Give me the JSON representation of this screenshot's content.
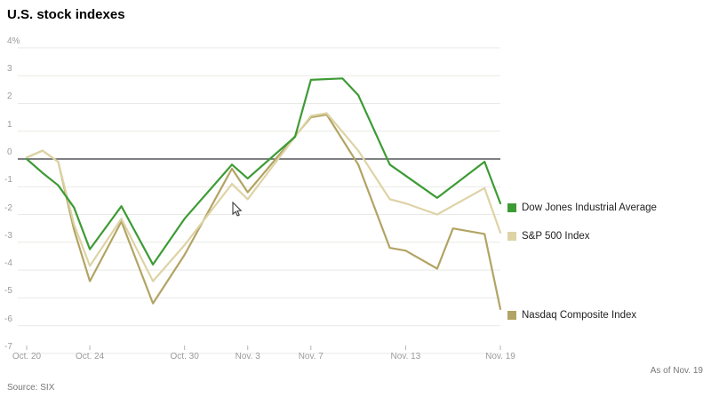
{
  "header": {
    "title": "U.S. stock indexes"
  },
  "footer": {
    "source": "Source: SIX",
    "as_of": "As of Nov. 19"
  },
  "chart_data": {
    "type": "line",
    "title": "U.S. stock indexes",
    "unit": "%",
    "grid": true,
    "y_axis": {
      "min": -7,
      "max": 4,
      "tick_step": 1,
      "labels": [
        "4%",
        "3",
        "2",
        "1",
        "0",
        "-1",
        "-2",
        "-3",
        "-4",
        "-5",
        "-6",
        "-7"
      ],
      "zero_line": true
    },
    "x_axis": {
      "start_date": "Oct. 20",
      "end_date": "Nov. 19",
      "span_days": 30,
      "ticks": [
        {
          "label": "Oct. 20",
          "day": 0
        },
        {
          "label": "Oct. 24",
          "day": 4
        },
        {
          "label": "Oct. 30",
          "day": 10
        },
        {
          "label": "Nov. 3",
          "day": 14
        },
        {
          "label": "Nov. 7",
          "day": 18
        },
        {
          "label": "Nov. 13",
          "day": 24
        },
        {
          "label": "Nov. 19",
          "day": 30
        }
      ]
    },
    "series": [
      {
        "name": "Dow Jones Industrial Average",
        "color": "#3d9b35",
        "points": [
          [
            "Oct. 20",
            0,
            0.0
          ],
          [
            "Oct. 21",
            1,
            -0.5
          ],
          [
            "Oct. 22",
            2,
            -0.95
          ],
          [
            "Oct. 23",
            3,
            -1.75
          ],
          [
            "Oct. 24",
            4,
            -3.25
          ],
          [
            "Oct. 26",
            6,
            -1.7
          ],
          [
            "Oct. 28",
            8,
            -3.8
          ],
          [
            "Oct. 30",
            10,
            -2.15
          ],
          [
            "Nov. 2",
            13,
            -0.2
          ],
          [
            "Nov. 3",
            14,
            -0.7
          ],
          [
            "Nov. 6",
            17,
            0.8
          ],
          [
            "Nov. 7",
            18,
            2.85
          ],
          [
            "Nov. 9",
            20,
            2.9
          ],
          [
            "Nov. 10",
            21,
            2.3
          ],
          [
            "Nov. 12",
            23,
            -0.2
          ],
          [
            "Nov. 13",
            24,
            -0.6
          ],
          [
            "Nov. 15",
            26,
            -1.4
          ],
          [
            "Nov. 18",
            29,
            -0.1
          ],
          [
            "Nov. 19",
            30,
            -1.6
          ]
        ]
      },
      {
        "name": "S&P 500 Index",
        "color": "#ded3a5",
        "points": [
          [
            "Oct. 20",
            0,
            0.05
          ],
          [
            "Oct. 21",
            1,
            0.3
          ],
          [
            "Oct. 22",
            2,
            -0.1
          ],
          [
            "Oct. 23",
            3,
            -2.35
          ],
          [
            "Oct. 24",
            4,
            -3.85
          ],
          [
            "Oct. 26",
            6,
            -2.15
          ],
          [
            "Oct. 28",
            8,
            -4.4
          ],
          [
            "Oct. 30",
            10,
            -3.1
          ],
          [
            "Nov. 2",
            13,
            -0.9
          ],
          [
            "Nov. 3",
            14,
            -1.45
          ],
          [
            "Nov. 7",
            18,
            1.55
          ],
          [
            "Nov. 8",
            19,
            1.65
          ],
          [
            "Nov. 10",
            21,
            0.3
          ],
          [
            "Nov. 12",
            23,
            -1.45
          ],
          [
            "Nov. 13",
            24,
            -1.6
          ],
          [
            "Nov. 15",
            26,
            -2.0
          ],
          [
            "Nov. 18",
            29,
            -1.05
          ],
          [
            "Nov. 19",
            30,
            -2.65
          ]
        ]
      },
      {
        "name": "Nasdaq Composite Index",
        "color": "#b2a464",
        "points": [
          [
            "Oct. 20",
            0,
            0.05
          ],
          [
            "Oct. 21",
            1,
            0.3
          ],
          [
            "Oct. 22",
            2,
            -0.1
          ],
          [
            "Oct. 23",
            3,
            -2.55
          ],
          [
            "Oct. 24",
            4,
            -4.4
          ],
          [
            "Oct. 26",
            6,
            -2.25
          ],
          [
            "Oct. 28",
            8,
            -5.2
          ],
          [
            "Oct. 30",
            10,
            -3.45
          ],
          [
            "Nov. 2",
            13,
            -0.35
          ],
          [
            "Nov. 3",
            14,
            -1.2
          ],
          [
            "Nov. 7",
            18,
            1.5
          ],
          [
            "Nov. 8",
            19,
            1.6
          ],
          [
            "Nov. 10",
            21,
            -0.2
          ],
          [
            "Nov. 12",
            23,
            -3.2
          ],
          [
            "Nov. 13",
            24,
            -3.3
          ],
          [
            "Nov. 15",
            26,
            -3.95
          ],
          [
            "Nov. 16",
            27,
            -2.5
          ],
          [
            "Nov. 18",
            29,
            -2.7
          ],
          [
            "Nov. 19",
            30,
            -5.4
          ]
        ]
      }
    ],
    "legend": {
      "position": "right-of-line-ends",
      "items": [
        "Dow Jones Industrial Average",
        "S&P 500 Index",
        "Nasdaq Composite Index"
      ]
    }
  }
}
